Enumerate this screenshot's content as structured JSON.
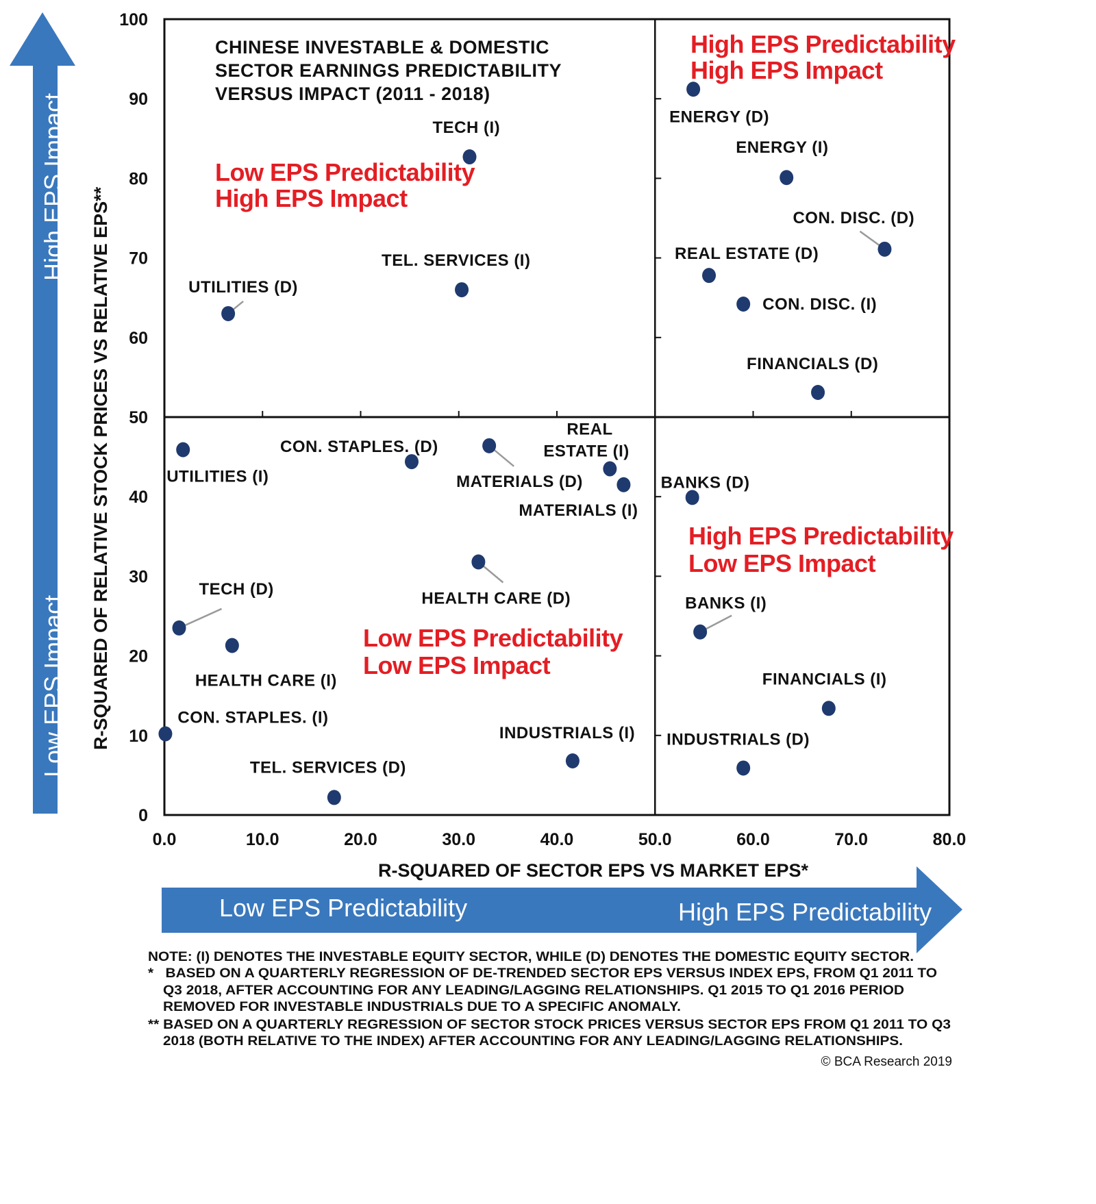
{
  "chart_data": {
    "type": "scatter",
    "title": [
      "CHINESE INVESTABLE & DOMESTIC",
      "SECTOR EARNINGS PREDICTABILITY",
      "VERSUS IMPACT (2011 - 2018)"
    ],
    "xlabel": "R-SQUARED OF SECTOR EPS VS MARKET EPS*",
    "ylabel": "R-SQUARED OF RELATIVE STOCK PRICES VS RELATIVE EPS**",
    "xlim": [
      0,
      80
    ],
    "ylim": [
      0,
      100
    ],
    "x_ticks": [
      "0.0",
      "10.0",
      "20.0",
      "30.0",
      "40.0",
      "50.0",
      "60.0",
      "70.0",
      "80.0"
    ],
    "y_ticks": [
      "0",
      "10",
      "20",
      "30",
      "40",
      "50",
      "60",
      "70",
      "80",
      "90",
      "100"
    ],
    "quadrant_divider": {
      "x": 50,
      "y": 50
    },
    "grid": false,
    "marker_color": "#1f3a6e",
    "points": [
      {
        "label": "ENERGY (D)",
        "x": 53.9,
        "y": 91.2
      },
      {
        "label": "ENERGY (I)",
        "x": 63.4,
        "y": 80.1
      },
      {
        "label": "CON. DISC. (D)",
        "x": 73.4,
        "y": 71.1
      },
      {
        "label": "REAL ESTATE (D)",
        "x": 55.5,
        "y": 67.8
      },
      {
        "label": "CON. DISC. (I)",
        "x": 59.0,
        "y": 64.2
      },
      {
        "label": "FINANCIALS (D)",
        "x": 66.6,
        "y": 53.1
      },
      {
        "label": "TECH (I)",
        "x": 31.1,
        "y": 82.7
      },
      {
        "label": "TEL. SERVICES (I)",
        "x": 30.3,
        "y": 66.0
      },
      {
        "label": "UTILITIES (D)",
        "x": 6.5,
        "y": 63.0
      },
      {
        "label": "UTILITIES (I)",
        "x": 1.9,
        "y": 45.9
      },
      {
        "label": "CON. STAPLES. (D)",
        "x": 25.2,
        "y": 44.4
      },
      {
        "label": "MATERIALS (D)",
        "x": 33.1,
        "y": 46.4
      },
      {
        "label": "REAL ESTATE (I)",
        "x": 45.4,
        "y": 43.5
      },
      {
        "label": "MATERIALS (I)",
        "x": 46.8,
        "y": 41.5
      },
      {
        "label": "BANKS (D)",
        "x": 53.8,
        "y": 39.9
      },
      {
        "label": "HEALTH CARE (D)",
        "x": 32.0,
        "y": 31.8
      },
      {
        "label": "TECH (D)",
        "x": 1.5,
        "y": 23.5
      },
      {
        "label": "HEALTH CARE (I)",
        "x": 6.9,
        "y": 21.3
      },
      {
        "label": "BANKS (I)",
        "x": 54.6,
        "y": 23.0
      },
      {
        "label": "FINANCIALS (I)",
        "x": 67.7,
        "y": 13.4
      },
      {
        "label": "CON. STAPLES. (I)",
        "x": 0.1,
        "y": 10.2
      },
      {
        "label": "INDUSTRIALS (I)",
        "x": 41.6,
        "y": 6.8
      },
      {
        "label": "INDUSTRIALS (D)",
        "x": 59.0,
        "y": 5.9
      },
      {
        "label": "TEL. SERVICES (D)",
        "x": 17.3,
        "y": 2.2
      }
    ],
    "quadrant_labels": [
      {
        "lines": [
          "Low EPS Predictability",
          "High EPS Impact"
        ],
        "quadrant": "top-left"
      },
      {
        "lines": [
          "High EPS Predictability",
          "High EPS Impact"
        ],
        "quadrant": "top-right"
      },
      {
        "lines": [
          "Low EPS Predictability",
          "Low EPS Impact"
        ],
        "quadrant": "bottom-left"
      },
      {
        "lines": [
          "High EPS Predictability",
          "Low EPS Impact"
        ],
        "quadrant": "bottom-right"
      }
    ],
    "quadrant_label_color": "#e31e24"
  },
  "arrows": {
    "color": "#3a78bd",
    "vertical": {
      "top_text": "High EPS Impact",
      "bottom_text": "Low EPS Impact"
    },
    "horizontal": {
      "left_text": "Low EPS Predictability",
      "right_text": "High EPS Predictability"
    }
  },
  "notes": [
    "NOTE: (I) DENOTES THE INVESTABLE EQUITY SECTOR, WHILE (D) DENOTES THE DOMESTIC EQUITY SECTOR.",
    "*   BASED ON A QUARTERLY REGRESSION OF DE-TRENDED SECTOR EPS VERSUS INDEX EPS, FROM Q1 2011 TO",
    "Q3 2018, AFTER ACCOUNTING FOR ANY LEADING/LAGGING RELATIONSHIPS. Q1 2015 TO Q1 2016 PERIOD",
    "REMOVED FOR INVESTABLE INDUSTRIALS DUE TO A SPECIFIC ANOMALY.",
    "** BASED ON A QUARTERLY REGRESSION OF SECTOR STOCK PRICES VERSUS SECTOR EPS FROM Q1 2011 TO Q3",
    "2018 (BOTH RELATIVE TO THE INDEX) AFTER ACCOUNTING FOR ANY LEADING/LAGGING RELATIONSHIPS."
  ],
  "copyright": "© BCA Research 2019"
}
